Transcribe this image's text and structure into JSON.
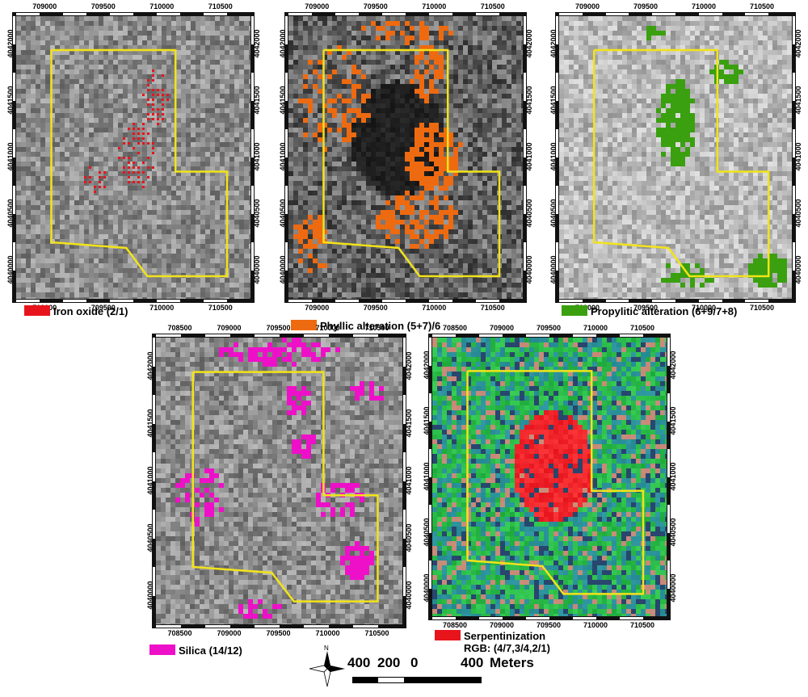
{
  "panels": [
    {
      "id": "iron",
      "legend_label": "Iron oxide (2/1)",
      "legend_color": "#e8141c",
      "overlay_color": "#e8141c",
      "base": "gray",
      "x_ticks": [
        "709000",
        "709500",
        "710000",
        "710500"
      ],
      "y_ticks": [
        "4042000",
        "4041500",
        "4041000",
        "4040500",
        "4040000"
      ]
    },
    {
      "id": "phyllic",
      "legend_label": "Phyllic alteration (5+7)/6",
      "legend_color": "#ee6a10",
      "overlay_color": "#ee6a10",
      "base": "dark-gray",
      "x_ticks": [
        "709000",
        "709500",
        "710000",
        "710500"
      ],
      "y_ticks": [
        "4042000",
        "4041500",
        "4041000",
        "4040500",
        "4040000"
      ]
    },
    {
      "id": "propylitic",
      "legend_label": "Propylitic alteration (6+9/7+8)",
      "legend_color": "#3aa010",
      "overlay_color": "#3aa010",
      "base": "light-gray",
      "x_ticks": [
        "709000",
        "709500",
        "710000",
        "710500"
      ],
      "y_ticks": [
        "4042000",
        "4041500",
        "4041000",
        "4040500",
        "4040000"
      ]
    },
    {
      "id": "silica",
      "legend_label": "Silica (14/12)",
      "legend_color": "#ee10c8",
      "overlay_color": "#ee10c8",
      "base": "gray",
      "x_ticks": [
        "708500",
        "709000",
        "709500",
        "710000",
        "710500"
      ],
      "y_ticks": [
        "4042000",
        "4041500",
        "4041000",
        "4040500",
        "4040000"
      ]
    },
    {
      "id": "serpentinization",
      "legend_label": "Serpentinization",
      "legend_sublabel": "RGB: (4/7,3/4,2/1)",
      "legend_color": "#e8141c",
      "overlay_color": "#ff1e1e",
      "base": "rgb",
      "x_ticks": [
        "708500",
        "709000",
        "709500",
        "710000",
        "710500"
      ],
      "y_ticks": [
        "4042000",
        "4041500",
        "4041000",
        "4040500",
        "4040000"
      ]
    }
  ],
  "boundary_color": "#f2e31a",
  "scale": {
    "labels": [
      "400",
      "200",
      "0",
      "400"
    ],
    "unit": "Meters",
    "north_label": "N"
  }
}
